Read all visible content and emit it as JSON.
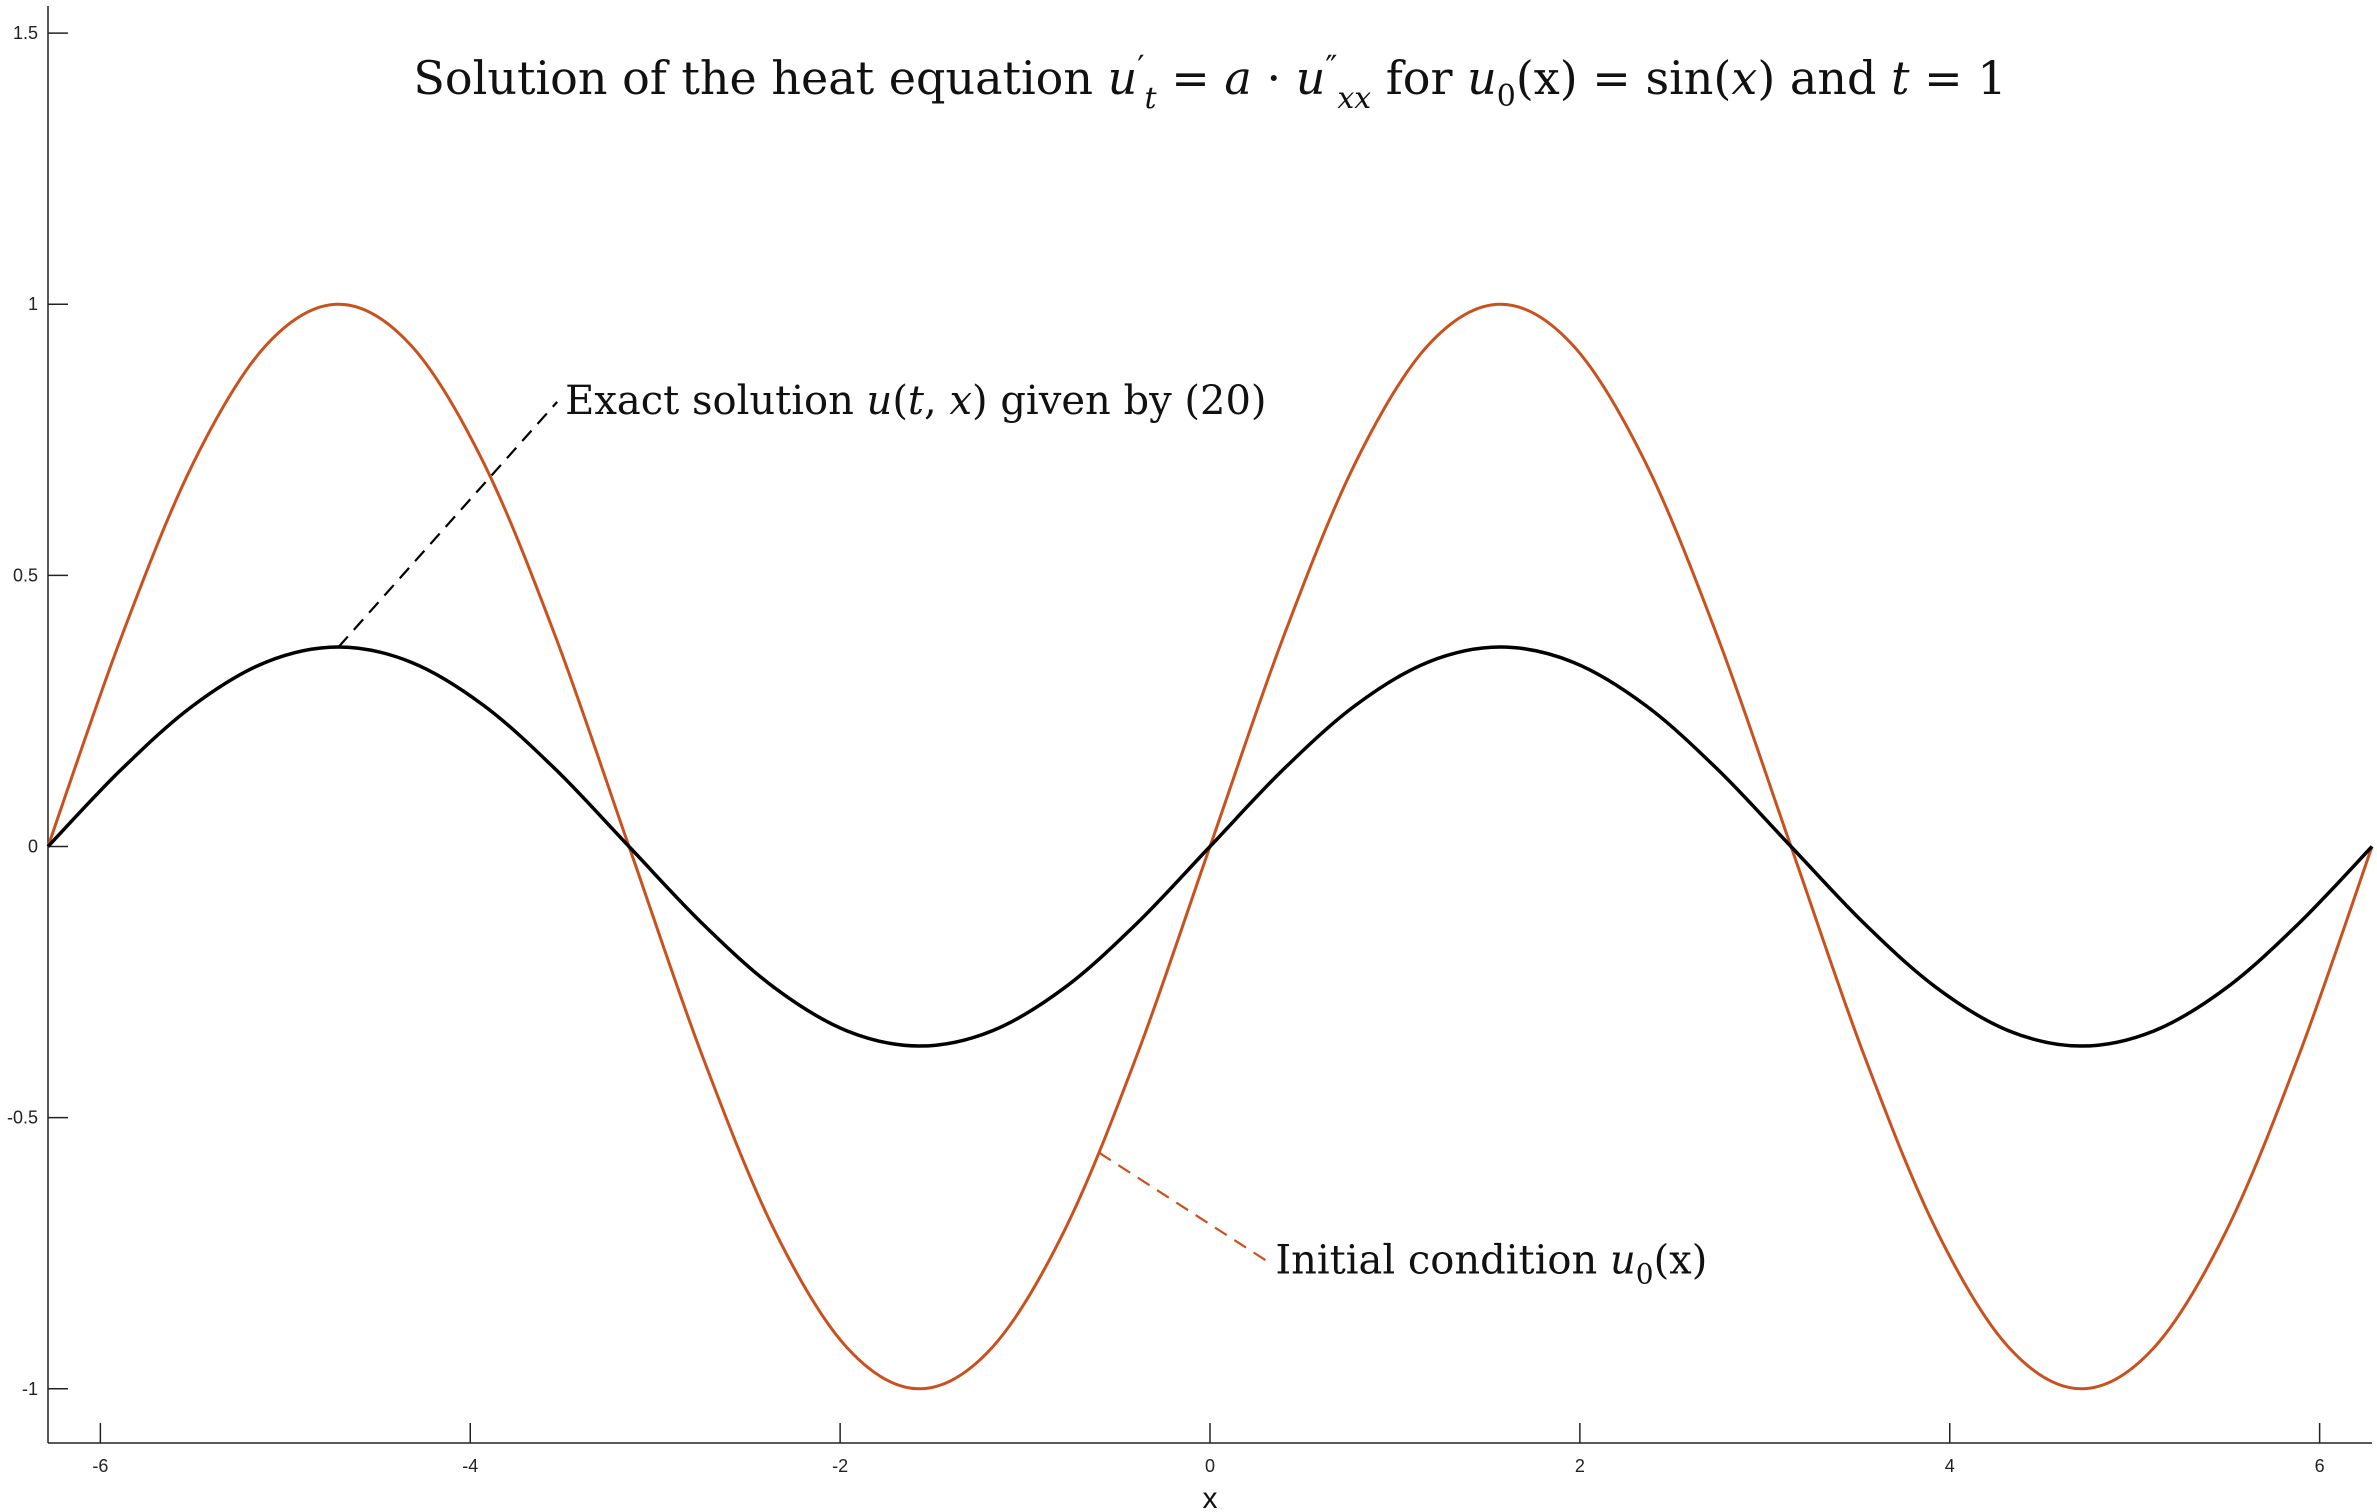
{
  "chart_data": {
    "type": "line",
    "title_parts": {
      "prefix": "Solution of the heat equation ",
      "u": "u",
      "prime_t": "′",
      "sub_t": "t",
      "eq1": " = ",
      "a": "a",
      "dot": " · ",
      "u2": "u",
      "dprime": "″",
      "sub_xx": "xx",
      "mid": " for ",
      "u0": "u",
      "sub_0": "0",
      "paren_x": "(x)",
      "eq2": " = sin(",
      "x2": "x",
      "close": ")",
      "and": " and ",
      "t": "t",
      "eq3": " = 1"
    },
    "xlabel": "x",
    "ylabel": "",
    "xlim": [
      -6.2832,
      6.2832
    ],
    "ylim": [
      -1.1,
      1.55
    ],
    "x_ticks": [
      -6,
      -4,
      -2,
      0,
      2,
      4,
      6
    ],
    "x_tick_labels": [
      "-6",
      "-4",
      "-2",
      "0",
      "2",
      "4",
      "6"
    ],
    "y_ticks": [
      -1,
      -0.5,
      0,
      0.5,
      1,
      1.5
    ],
    "y_tick_labels": [
      "-1",
      "-0.5",
      "0",
      "0.5",
      "1",
      "1.5"
    ],
    "grid": false,
    "series": [
      {
        "name": "Initial condition u0(x)",
        "color": "#C9511E",
        "function": "sin(x)",
        "x": [
          -6.2832,
          -5.8905,
          -5.4978,
          -5.1051,
          -4.7124,
          -4.3197,
          -3.927,
          -3.5343,
          -3.1416,
          -2.7489,
          -2.3562,
          -1.9635,
          -1.5708,
          -1.1781,
          -0.7854,
          -0.3927,
          0,
          0.3927,
          0.7854,
          1.1781,
          1.5708,
          1.9635,
          2.3562,
          2.7489,
          3.1416,
          3.5343,
          3.927,
          4.3197,
          4.7124,
          5.1051,
          5.4978,
          5.8905,
          6.2832
        ],
        "y": [
          0,
          0.3827,
          0.7071,
          0.9239,
          1,
          0.9239,
          0.7071,
          0.3827,
          0,
          -0.3827,
          -0.7071,
          -0.9239,
          -1,
          -0.9239,
          -0.7071,
          -0.3827,
          0,
          0.3827,
          0.7071,
          0.9239,
          1,
          0.9239,
          0.7071,
          0.3827,
          0,
          -0.3827,
          -0.7071,
          -0.9239,
          -1,
          -0.9239,
          -0.7071,
          -0.3827,
          0
        ]
      },
      {
        "name": "Exact solution u(t,x) given by (20)",
        "color": "#000000",
        "function": "exp(-1)*sin(x)",
        "x": [
          -6.2832,
          -5.8905,
          -5.4978,
          -5.1051,
          -4.7124,
          -4.3197,
          -3.927,
          -3.5343,
          -3.1416,
          -2.7489,
          -2.3562,
          -1.9635,
          -1.5708,
          -1.1781,
          -0.7854,
          -0.3927,
          0,
          0.3927,
          0.7854,
          1.1781,
          1.5708,
          1.9635,
          2.3562,
          2.7489,
          3.1416,
          3.5343,
          3.927,
          4.3197,
          4.7124,
          5.1051,
          5.4978,
          5.8905,
          6.2832
        ],
        "y": [
          0,
          0.1408,
          0.2601,
          0.3399,
          0.3679,
          0.3399,
          0.2601,
          0.1408,
          0,
          -0.1408,
          -0.2601,
          -0.3399,
          -0.3679,
          -0.3399,
          -0.2601,
          -0.1408,
          0,
          0.1408,
          0.2601,
          0.3399,
          0.3679,
          0.3399,
          0.2601,
          0.1408,
          0,
          -0.1408,
          -0.2601,
          -0.3399,
          -0.3679,
          -0.3399,
          -0.2601,
          -0.1408,
          0
        ]
      }
    ],
    "annotations": [
      {
        "kind": "exact",
        "color": "#000000",
        "point": [
          -4.7124,
          0.3679
        ],
        "label_anchor": [
          -3.53,
          0.82
        ],
        "parts": {
          "pre": "Exact solution ",
          "u": "u",
          "open": "(",
          "t": "t",
          "comma": ", ",
          "x": "x",
          "post": ") given by (20)"
        }
      },
      {
        "kind": "initial",
        "color": "#C9511E",
        "point": [
          -0.5999,
          -0.5646
        ],
        "label_anchor": [
          0.31,
          -0.765
        ],
        "parts": {
          "pre": "Initial condition ",
          "u": "u",
          "sub": "0",
          "post": "(x)"
        }
      }
    ]
  }
}
